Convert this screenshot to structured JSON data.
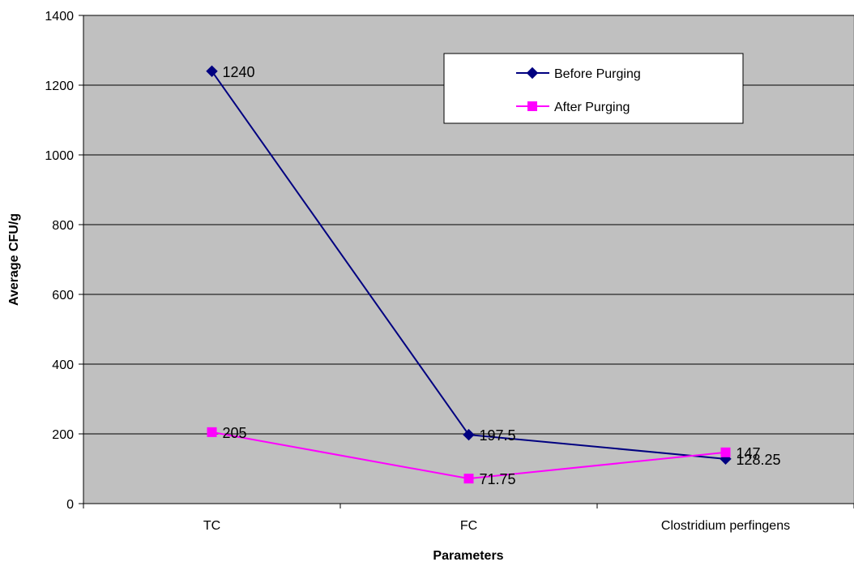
{
  "chart_data": {
    "type": "line",
    "title": "",
    "xlabel": "Parameters",
    "ylabel": "Average CFU/g",
    "categories": [
      "TC",
      "FC",
      "Clostridium perfingens"
    ],
    "ylim": [
      0,
      1400
    ],
    "yticks": [
      0,
      200,
      400,
      600,
      800,
      1000,
      1200,
      1400
    ],
    "grid": true,
    "legend_position": "top-right",
    "plot_background": "#c0c0c0",
    "series": [
      {
        "name": "Before Purging",
        "values": [
          1240,
          197.5,
          128.25
        ],
        "labels": [
          "1240",
          "197.5",
          "128.25"
        ],
        "color": "#000080",
        "marker": "diamond"
      },
      {
        "name": "After Purging",
        "values": [
          205,
          71.75,
          147
        ],
        "labels": [
          "205",
          "71.75",
          "147"
        ],
        "color": "#ff00ff",
        "marker": "square"
      }
    ]
  }
}
